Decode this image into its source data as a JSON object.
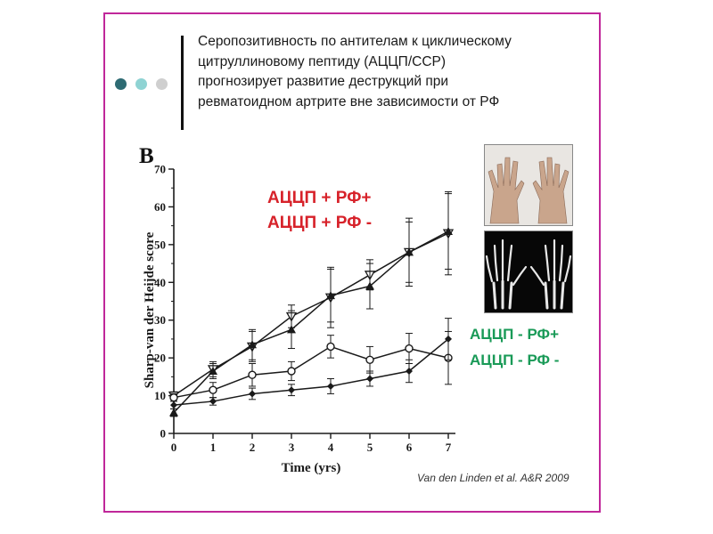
{
  "slide": {
    "title_lines": [
      "Серопозитивность по антителам к циклическому",
      "цитруллиновому пептиду (АЦЦП/CCP)",
      "прогнозирует развитие деструкций при",
      "ревматоидном артрите вне зависимости от РФ"
    ],
    "panel_label": "B",
    "legend_red": [
      "АЦЦП + РФ+",
      "АЦЦП + РФ -"
    ],
    "legend_green": [
      "АЦЦП - РФ+",
      "АЦЦП - РФ -"
    ],
    "citation": "Van den Linden et al. A&R 2009",
    "colors": {
      "frame": "#c0279a",
      "dots": [
        "#2e6b73",
        "#8fd3d3",
        "#cfcfcf"
      ],
      "legend_red": "#d7222a",
      "legend_green": "#199a57"
    },
    "images": [
      "hands-photo",
      "hands-xray"
    ]
  },
  "chart_data": {
    "type": "line",
    "xlabel": "Time (yrs)",
    "ylabel": "Sharp-van der Heijde score",
    "x": [
      0,
      1,
      2,
      3,
      4,
      5,
      6,
      7
    ],
    "xlim": [
      0,
      7
    ],
    "ylim": [
      0,
      70
    ],
    "xticks": [
      "0",
      "1",
      "2",
      "3",
      "4",
      "5",
      "6",
      "7"
    ],
    "yticks": [
      "0",
      "10",
      "20",
      "30",
      "40",
      "50",
      "60",
      "70"
    ],
    "series": [
      {
        "marker": "open-triangle-down",
        "values": [
          10,
          17,
          23,
          31,
          36,
          42,
          48,
          53
        ],
        "errors": [
          1,
          2,
          4,
          3,
          8,
          4,
          8,
          11
        ]
      },
      {
        "marker": "filled-triangle-up",
        "values": [
          5.5,
          16.5,
          23.5,
          27.5,
          36.5,
          39,
          48,
          53.5
        ],
        "errors": [
          1,
          2,
          4,
          5,
          7,
          6,
          9,
          10
        ]
      },
      {
        "marker": "open-circle",
        "values": [
          9.5,
          11.5,
          15.5,
          16.5,
          23,
          19.5,
          22.5,
          20
        ],
        "errors": [
          1,
          2,
          3,
          2.5,
          3,
          3.5,
          4,
          7
        ]
      },
      {
        "marker": "filled-diamond",
        "values": [
          7.5,
          8.5,
          10.5,
          11.5,
          12.5,
          14.5,
          16.5,
          25
        ],
        "errors": [
          1,
          1,
          1.5,
          1.5,
          2,
          2,
          3,
          5.5
        ]
      }
    ]
  }
}
